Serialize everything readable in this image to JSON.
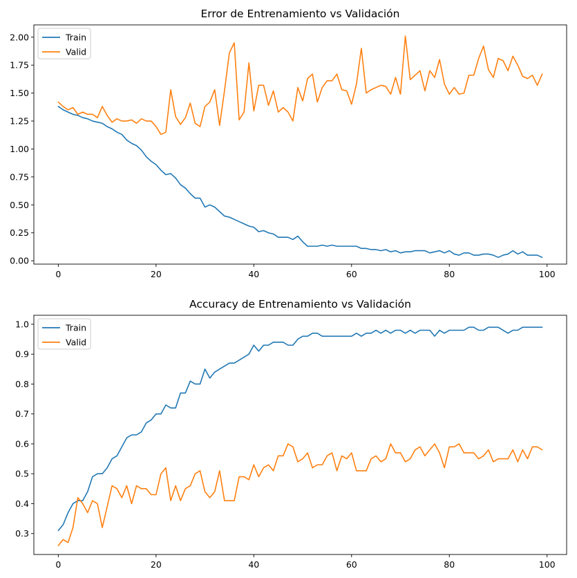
{
  "chart_data": [
    {
      "type": "line",
      "title": "Error de Entrenamiento vs Validación",
      "xlabel": "",
      "ylabel": "",
      "xlim": [
        -5,
        104
      ],
      "ylim": [
        -0.03,
        2.11
      ],
      "xticks": [
        0,
        20,
        40,
        60,
        80,
        100
      ],
      "yticks": [
        0.0,
        0.25,
        0.5,
        0.75,
        1.0,
        1.25,
        1.5,
        1.75,
        2.0
      ],
      "ytick_labels": [
        "0.00",
        "0.25",
        "0.50",
        "0.75",
        "1.00",
        "1.25",
        "1.50",
        "1.75",
        "2.00"
      ],
      "grid": false,
      "legend": "top-left",
      "series": [
        {
          "name": "Train",
          "color": "#1f77b4",
          "x": [
            0,
            1,
            2,
            3,
            4,
            5,
            6,
            7,
            8,
            9,
            10,
            11,
            12,
            13,
            14,
            15,
            16,
            17,
            18,
            19,
            20,
            21,
            22,
            23,
            24,
            25,
            26,
            27,
            28,
            29,
            30,
            31,
            32,
            33,
            34,
            35,
            36,
            37,
            38,
            39,
            40,
            41,
            42,
            43,
            44,
            45,
            46,
            47,
            48,
            49,
            50,
            51,
            52,
            53,
            54,
            55,
            56,
            57,
            58,
            59,
            60,
            61,
            62,
            63,
            64,
            65,
            66,
            67,
            68,
            69,
            70,
            71,
            72,
            73,
            74,
            75,
            76,
            77,
            78,
            79,
            80,
            81,
            82,
            83,
            84,
            85,
            86,
            87,
            88,
            89,
            90,
            91,
            92,
            93,
            94,
            95,
            96,
            97,
            98,
            99
          ],
          "values": [
            1.38,
            1.35,
            1.33,
            1.31,
            1.3,
            1.28,
            1.27,
            1.25,
            1.24,
            1.23,
            1.2,
            1.18,
            1.15,
            1.13,
            1.08,
            1.05,
            1.03,
            0.99,
            0.93,
            0.89,
            0.86,
            0.81,
            0.77,
            0.78,
            0.74,
            0.68,
            0.65,
            0.6,
            0.56,
            0.56,
            0.48,
            0.5,
            0.48,
            0.44,
            0.4,
            0.39,
            0.37,
            0.35,
            0.33,
            0.31,
            0.3,
            0.26,
            0.27,
            0.25,
            0.24,
            0.21,
            0.21,
            0.21,
            0.19,
            0.22,
            0.17,
            0.13,
            0.13,
            0.13,
            0.14,
            0.13,
            0.14,
            0.13,
            0.13,
            0.13,
            0.13,
            0.13,
            0.11,
            0.11,
            0.1,
            0.1,
            0.09,
            0.1,
            0.08,
            0.09,
            0.07,
            0.08,
            0.08,
            0.09,
            0.09,
            0.09,
            0.07,
            0.08,
            0.09,
            0.07,
            0.09,
            0.06,
            0.05,
            0.07,
            0.07,
            0.05,
            0.05,
            0.06,
            0.06,
            0.05,
            0.03,
            0.05,
            0.06,
            0.09,
            0.06,
            0.08,
            0.05,
            0.05,
            0.05,
            0.03
          ]
        },
        {
          "name": "Valid",
          "color": "#ff7f0e",
          "x": [
            0,
            1,
            2,
            3,
            4,
            5,
            6,
            7,
            8,
            9,
            10,
            11,
            12,
            13,
            14,
            15,
            16,
            17,
            18,
            19,
            20,
            21,
            22,
            23,
            24,
            25,
            26,
            27,
            28,
            29,
            30,
            31,
            32,
            33,
            34,
            35,
            36,
            37,
            38,
            39,
            40,
            41,
            42,
            43,
            44,
            45,
            46,
            47,
            48,
            49,
            50,
            51,
            52,
            53,
            54,
            55,
            56,
            57,
            58,
            59,
            60,
            61,
            62,
            63,
            64,
            65,
            66,
            67,
            68,
            69,
            70,
            71,
            72,
            73,
            74,
            75,
            76,
            77,
            78,
            79,
            80,
            81,
            82,
            83,
            84,
            85,
            86,
            87,
            88,
            89,
            90,
            91,
            92,
            93,
            94,
            95,
            96,
            97,
            98,
            99
          ],
          "values": [
            1.42,
            1.38,
            1.35,
            1.37,
            1.31,
            1.33,
            1.31,
            1.31,
            1.28,
            1.38,
            1.3,
            1.24,
            1.27,
            1.25,
            1.25,
            1.26,
            1.23,
            1.27,
            1.25,
            1.25,
            1.2,
            1.13,
            1.15,
            1.53,
            1.29,
            1.22,
            1.28,
            1.41,
            1.23,
            1.2,
            1.38,
            1.42,
            1.53,
            1.21,
            1.52,
            1.86,
            1.95,
            1.26,
            1.33,
            1.77,
            1.34,
            1.57,
            1.57,
            1.39,
            1.52,
            1.33,
            1.37,
            1.33,
            1.25,
            1.55,
            1.43,
            1.63,
            1.67,
            1.42,
            1.55,
            1.61,
            1.61,
            1.67,
            1.53,
            1.52,
            1.4,
            1.58,
            1.9,
            1.5,
            1.53,
            1.55,
            1.57,
            1.56,
            1.49,
            1.64,
            1.49,
            2.01,
            1.62,
            1.66,
            1.7,
            1.52,
            1.7,
            1.64,
            1.8,
            1.58,
            1.49,
            1.55,
            1.49,
            1.5,
            1.66,
            1.66,
            1.81,
            1.92,
            1.71,
            1.64,
            1.81,
            1.79,
            1.7,
            1.83,
            1.75,
            1.65,
            1.63,
            1.66,
            1.57,
            1.67
          ]
        }
      ]
    },
    {
      "type": "line",
      "title": "Accuracy de Entrenamiento vs Validación",
      "xlabel": "",
      "ylabel": "",
      "xlim": [
        -5,
        104
      ],
      "ylim": [
        0.23,
        1.03
      ],
      "xticks": [
        0,
        20,
        40,
        60,
        80,
        100
      ],
      "yticks": [
        0.3,
        0.4,
        0.5,
        0.6,
        0.7,
        0.8,
        0.9,
        1.0
      ],
      "ytick_labels": [
        "0.3",
        "0.4",
        "0.5",
        "0.6",
        "0.7",
        "0.8",
        "0.9",
        "1.0"
      ],
      "grid": false,
      "legend": "top-left",
      "series": [
        {
          "name": "Train",
          "color": "#1f77b4",
          "x": [
            0,
            1,
            2,
            3,
            4,
            5,
            6,
            7,
            8,
            9,
            10,
            11,
            12,
            13,
            14,
            15,
            16,
            17,
            18,
            19,
            20,
            21,
            22,
            23,
            24,
            25,
            26,
            27,
            28,
            29,
            30,
            31,
            32,
            33,
            34,
            35,
            36,
            37,
            38,
            39,
            40,
            41,
            42,
            43,
            44,
            45,
            46,
            47,
            48,
            49,
            50,
            51,
            52,
            53,
            54,
            55,
            56,
            57,
            58,
            59,
            60,
            61,
            62,
            63,
            64,
            65,
            66,
            67,
            68,
            69,
            70,
            71,
            72,
            73,
            74,
            75,
            76,
            77,
            78,
            79,
            80,
            81,
            82,
            83,
            84,
            85,
            86,
            87,
            88,
            89,
            90,
            91,
            92,
            93,
            94,
            95,
            96,
            97,
            98,
            99
          ],
          "values": [
            0.31,
            0.33,
            0.37,
            0.4,
            0.41,
            0.41,
            0.44,
            0.49,
            0.5,
            0.5,
            0.52,
            0.55,
            0.56,
            0.59,
            0.62,
            0.63,
            0.63,
            0.64,
            0.67,
            0.68,
            0.7,
            0.7,
            0.73,
            0.72,
            0.72,
            0.77,
            0.77,
            0.81,
            0.8,
            0.8,
            0.85,
            0.82,
            0.84,
            0.85,
            0.86,
            0.87,
            0.87,
            0.88,
            0.89,
            0.9,
            0.93,
            0.91,
            0.93,
            0.93,
            0.94,
            0.94,
            0.94,
            0.93,
            0.93,
            0.95,
            0.96,
            0.96,
            0.97,
            0.97,
            0.96,
            0.96,
            0.96,
            0.96,
            0.96,
            0.96,
            0.96,
            0.97,
            0.96,
            0.97,
            0.97,
            0.98,
            0.97,
            0.98,
            0.97,
            0.98,
            0.98,
            0.97,
            0.98,
            0.97,
            0.98,
            0.98,
            0.98,
            0.96,
            0.98,
            0.97,
            0.98,
            0.98,
            0.98,
            0.98,
            0.99,
            0.99,
            0.98,
            0.98,
            0.99,
            0.99,
            0.99,
            0.98,
            0.97,
            0.98,
            0.98,
            0.99,
            0.99,
            0.99,
            0.99,
            0.99
          ]
        },
        {
          "name": "Valid",
          "color": "#ff7f0e",
          "x": [
            0,
            1,
            2,
            3,
            4,
            5,
            6,
            7,
            8,
            9,
            10,
            11,
            12,
            13,
            14,
            15,
            16,
            17,
            18,
            19,
            20,
            21,
            22,
            23,
            24,
            25,
            26,
            27,
            28,
            29,
            30,
            31,
            32,
            33,
            34,
            35,
            36,
            37,
            38,
            39,
            40,
            41,
            42,
            43,
            44,
            45,
            46,
            47,
            48,
            49,
            50,
            51,
            52,
            53,
            54,
            55,
            56,
            57,
            58,
            59,
            60,
            61,
            62,
            63,
            64,
            65,
            66,
            67,
            68,
            69,
            70,
            71,
            72,
            73,
            74,
            75,
            76,
            77,
            78,
            79,
            80,
            81,
            82,
            83,
            84,
            85,
            86,
            87,
            88,
            89,
            90,
            91,
            92,
            93,
            94,
            95,
            96,
            97,
            98,
            99
          ],
          "values": [
            0.26,
            0.28,
            0.27,
            0.32,
            0.42,
            0.4,
            0.37,
            0.41,
            0.4,
            0.32,
            0.39,
            0.46,
            0.45,
            0.42,
            0.46,
            0.4,
            0.46,
            0.45,
            0.45,
            0.43,
            0.43,
            0.5,
            0.52,
            0.41,
            0.46,
            0.41,
            0.45,
            0.46,
            0.5,
            0.51,
            0.44,
            0.42,
            0.44,
            0.51,
            0.41,
            0.41,
            0.41,
            0.49,
            0.49,
            0.48,
            0.53,
            0.49,
            0.52,
            0.53,
            0.51,
            0.56,
            0.56,
            0.6,
            0.59,
            0.54,
            0.55,
            0.57,
            0.52,
            0.53,
            0.53,
            0.56,
            0.57,
            0.51,
            0.56,
            0.55,
            0.57,
            0.51,
            0.51,
            0.51,
            0.55,
            0.56,
            0.54,
            0.55,
            0.6,
            0.57,
            0.57,
            0.54,
            0.55,
            0.58,
            0.59,
            0.56,
            0.58,
            0.6,
            0.57,
            0.52,
            0.59,
            0.59,
            0.6,
            0.57,
            0.57,
            0.57,
            0.55,
            0.56,
            0.58,
            0.54,
            0.55,
            0.55,
            0.55,
            0.58,
            0.54,
            0.58,
            0.55,
            0.59,
            0.59,
            0.58
          ]
        }
      ]
    }
  ]
}
